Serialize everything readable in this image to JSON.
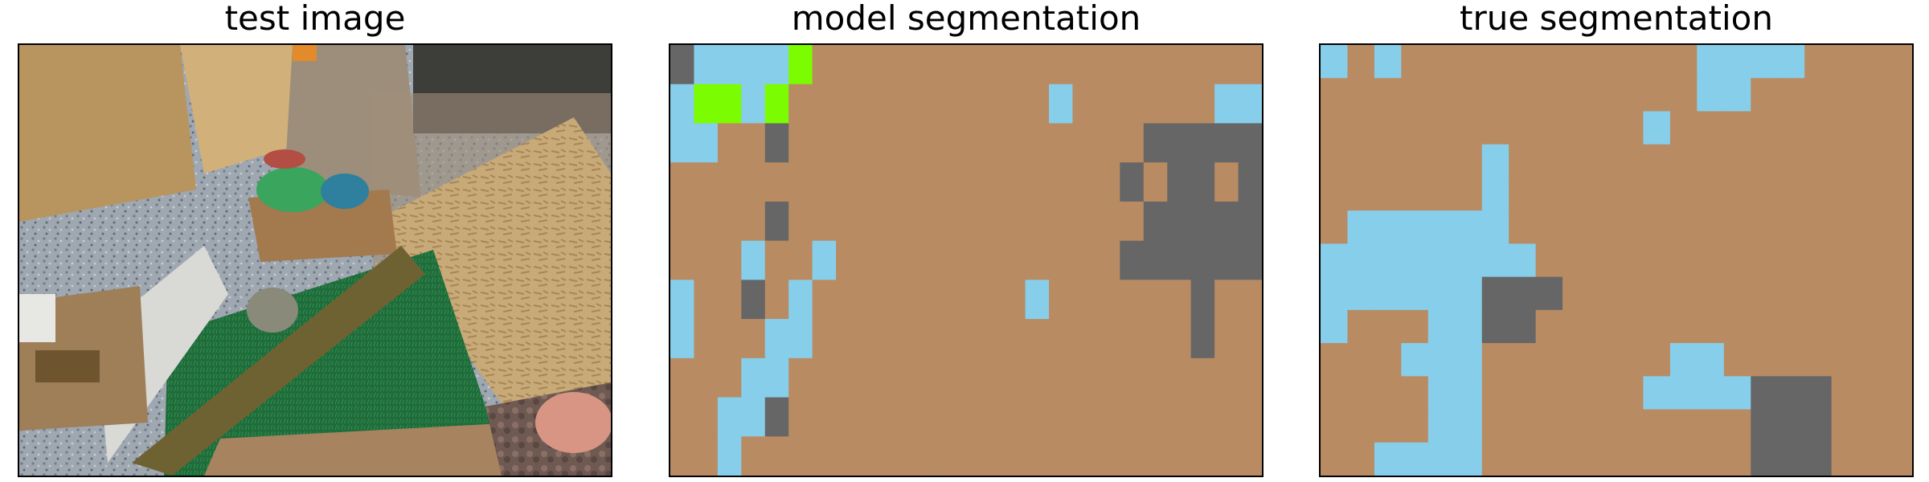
{
  "figure": {
    "panels": [
      {
        "title": "test image",
        "kind": "photo"
      },
      {
        "title": "model segmentation",
        "kind": "segmentation",
        "grid": [
          "GBBBBLxxxxxxxxxxxxxxxxxxx",
          "BLLBLxxxxxxxxxxxBxxxxxxBB",
          "BBxxGxxxxxxxxxxxxxxxGGGGG",
          "xxxxxxxxxxxxxxxxxxxGxGGxG",
          "xxxxGxxxxxxxxxxxxxxxGGGGG",
          "xxxBxxBxxxxxxxxxxxxGGGGGG",
          "BxxGxBxxxxxxxxxBxxxxxxGxx",
          "BxxxBBxxxxxxxxxxxxxxxxGxx",
          "xxxBBxxxxxxxxxxxxxxxxxxxx",
          "xxBBGxxxxxxxxxxxxxxxxxxxx",
          "xxBxxxxxxxxxxxxxxxxxxxxxx"
        ]
      },
      {
        "title": "true segmentation",
        "kind": "segmentation",
        "grid": [
          "BxBxxxxxxxxxxxBBBBxxxx",
          "xxxxxxxxxxxxxxBBxxxxxx",
          "xxxxxxxxxxxxBxxxxxxxxx",
          "xxxxxxBxxxxxxxxxxxxxxx",
          "xxxxxxBxxxxxxxxxxxxxxx",
          "xBBBBBBxxxxxxxxxxxxxxx",
          "BBBBBBBBxxxxxxxxxxxxxx",
          "BBBBBBGGGxxxxxxxxxxxxx",
          "BxxxBBGGxxxxxxxxxxxxxx",
          "xxxBBBxxxxxxxBBxxxxxxx",
          "xxxxBBxxxxxxBBBBGGGxxx",
          "xxxxBBxxxxxxxxxxGGGxxx",
          "xxBBBBxxxxxxxxxxGGGxxx"
        ]
      }
    ],
    "class_colors": {
      "x": "#b98b62",
      "B": "#87ceeb",
      "G": "#666666",
      "L": "#7cfc00"
    }
  }
}
